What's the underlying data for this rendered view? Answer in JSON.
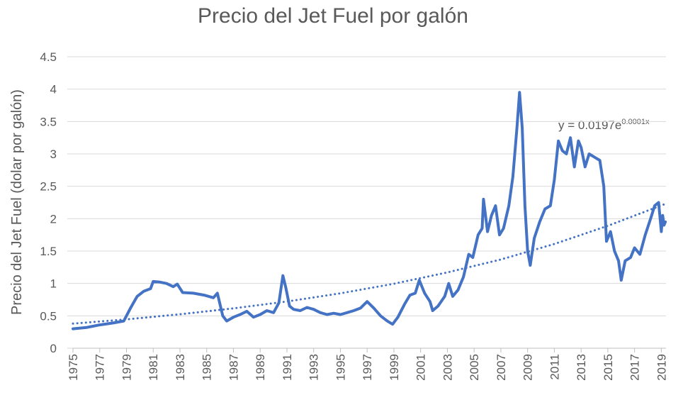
{
  "chart_data": {
    "type": "line",
    "title": "Precio del Jet Fuel por galón",
    "y_label": "Precio del Jet Fuel (dolar por galón)",
    "annotation": {
      "text": "y = 0.0197e",
      "superscript": "0.0001x"
    },
    "xlim": [
      1975,
      2019.35
    ],
    "xticks": [
      1975,
      1977,
      1979,
      1981,
      1983,
      1985,
      1987,
      1989,
      1991,
      1993,
      1995,
      1997,
      1999,
      2001,
      2003,
      2005,
      2007,
      2009,
      2011,
      2013,
      2015,
      2017,
      2019
    ],
    "ylim": [
      0,
      4.5
    ],
    "yticks": [
      0,
      0.5,
      1,
      1.5,
      2,
      2.5,
      3,
      3.5,
      4,
      4.5
    ],
    "grid": true,
    "series": [
      {
        "color": "#4472c4",
        "line_style": "solid",
        "x": [
          1975.0,
          1976.0,
          1977.0,
          1978.0,
          1978.8,
          1979.3,
          1979.8,
          1980.3,
          1980.8,
          1981.0,
          1981.5,
          1982.0,
          1982.5,
          1982.8,
          1983.2,
          1984.0,
          1984.8,
          1985.5,
          1985.8,
          1986.2,
          1986.5,
          1987.0,
          1987.5,
          1988.0,
          1988.5,
          1989.0,
          1989.5,
          1990.0,
          1990.4,
          1990.7,
          1990.9,
          1991.2,
          1991.5,
          1992.0,
          1992.5,
          1993.0,
          1993.5,
          1994.0,
          1994.5,
          1995.0,
          1995.5,
          1996.0,
          1996.5,
          1997.0,
          1997.5,
          1998.0,
          1998.5,
          1998.9,
          1999.3,
          1999.8,
          2000.2,
          2000.6,
          2000.9,
          2001.3,
          2001.7,
          2001.9,
          2002.3,
          2002.8,
          2003.1,
          2003.4,
          2003.8,
          2004.2,
          2004.6,
          2004.9,
          2005.3,
          2005.6,
          2005.7,
          2006.0,
          2006.3,
          2006.6,
          2006.9,
          2007.2,
          2007.6,
          2007.9,
          2008.2,
          2008.4,
          2008.6,
          2008.8,
          2009.0,
          2009.2,
          2009.5,
          2009.9,
          2010.3,
          2010.7,
          2011.0,
          2011.3,
          2011.6,
          2011.9,
          2012.2,
          2012.5,
          2012.8,
          2013.0,
          2013.3,
          2013.6,
          2014.0,
          2014.4,
          2014.7,
          2014.9,
          2015.2,
          2015.5,
          2015.8,
          2016.0,
          2016.3,
          2016.7,
          2017.0,
          2017.4,
          2017.8,
          2018.2,
          2018.5,
          2018.8,
          2019.0,
          2019.1,
          2019.2,
          2019.3
        ],
        "values": [
          0.3,
          0.32,
          0.36,
          0.39,
          0.42,
          0.62,
          0.8,
          0.88,
          0.92,
          1.03,
          1.02,
          1.0,
          0.95,
          0.99,
          0.86,
          0.85,
          0.82,
          0.78,
          0.85,
          0.5,
          0.42,
          0.48,
          0.52,
          0.57,
          0.48,
          0.52,
          0.58,
          0.55,
          0.7,
          1.12,
          0.95,
          0.65,
          0.6,
          0.58,
          0.63,
          0.6,
          0.55,
          0.52,
          0.54,
          0.52,
          0.55,
          0.58,
          0.62,
          0.72,
          0.62,
          0.5,
          0.42,
          0.37,
          0.48,
          0.68,
          0.82,
          0.85,
          1.05,
          0.85,
          0.72,
          0.58,
          0.65,
          0.8,
          1.0,
          0.8,
          0.9,
          1.1,
          1.45,
          1.4,
          1.75,
          1.85,
          2.3,
          1.8,
          2.05,
          2.2,
          1.75,
          1.85,
          2.2,
          2.65,
          3.4,
          3.95,
          3.4,
          2.2,
          1.5,
          1.28,
          1.7,
          1.95,
          2.15,
          2.2,
          2.6,
          3.2,
          3.05,
          3.0,
          3.25,
          2.8,
          3.2,
          3.1,
          2.8,
          3.0,
          2.95,
          2.9,
          2.5,
          1.65,
          1.8,
          1.5,
          1.35,
          1.05,
          1.35,
          1.4,
          1.55,
          1.45,
          1.75,
          2.0,
          2.2,
          2.25,
          1.8,
          2.05,
          1.9,
          1.95
        ]
      },
      {
        "color": "#4472c4",
        "line_style": "dotted",
        "x": [
          1975,
          1979,
          1983,
          1987,
          1991,
          1995,
          1999,
          2003,
          2007,
          2011,
          2015,
          2019.2
        ],
        "values": [
          0.38,
          0.446,
          0.524,
          0.615,
          0.722,
          0.847,
          0.995,
          1.17,
          1.37,
          1.61,
          1.89,
          2.22
        ]
      }
    ]
  }
}
